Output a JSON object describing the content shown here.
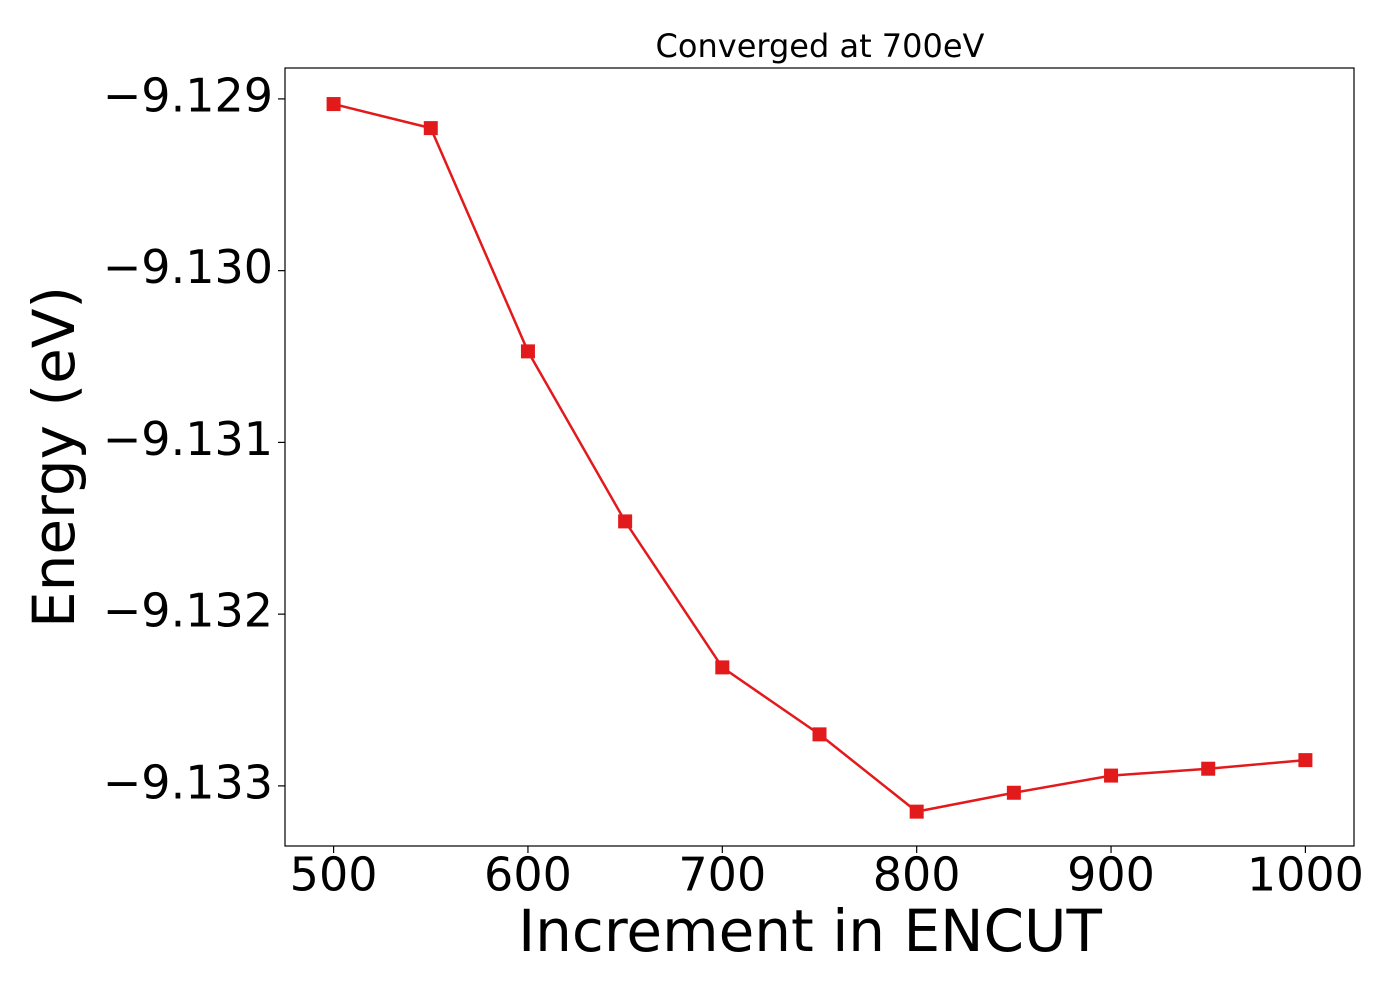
{
  "chart_data": {
    "type": "line",
    "title": "Converged at 700eV",
    "xlabel": "Increment in ENCUT",
    "ylabel": "Energy (eV)",
    "x": [
      500,
      550,
      600,
      650,
      700,
      750,
      800,
      850,
      900,
      950,
      1000
    ],
    "series": [
      {
        "color": "#e31a1c",
        "marker": "square",
        "values": [
          -9.12903,
          -9.12917,
          -9.13047,
          -9.13146,
          -9.13231,
          -9.1327,
          -9.13315,
          -9.13304,
          -9.13294,
          -9.1329,
          -9.13285
        ]
      }
    ],
    "xlim": [
      475,
      1025
    ],
    "xticks": [
      500,
      600,
      700,
      800,
      900,
      1000
    ],
    "ylim": [
      -9.13335,
      -9.12882
    ],
    "yticks": [
      {
        "value": -9.133,
        "label": "−9.133"
      },
      {
        "value": -9.132,
        "label": "−9.132"
      },
      {
        "value": -9.131,
        "label": "−9.131"
      },
      {
        "value": -9.13,
        "label": "−9.130"
      },
      {
        "value": -9.129,
        "label": "−9.129"
      }
    ],
    "grid": false
  }
}
